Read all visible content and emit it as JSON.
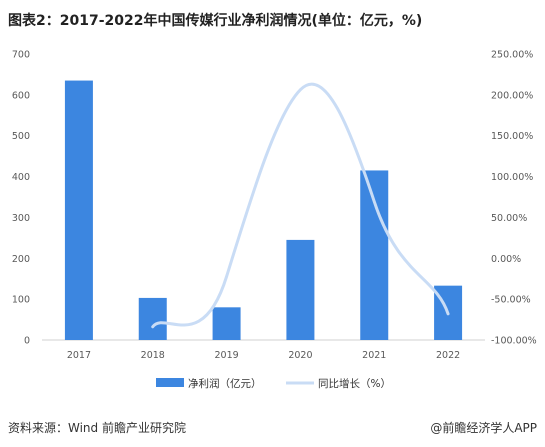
{
  "header": {
    "title": "图表2：2017-2022年中国传媒行业净利润情况(单位：亿元，%)"
  },
  "footer": {
    "source": "资料来源：Wind 前瞻产业研究院",
    "brand": "@前瞻经济学人APP"
  },
  "colors": {
    "bar": "#3c86e0",
    "line": "#c9dcf5",
    "axis": "#d0d0d0",
    "text": "#595959"
  },
  "chart_data": {
    "type": "bar",
    "categories": [
      "2017",
      "2018",
      "2019",
      "2020",
      "2021",
      "2022"
    ],
    "series": [
      {
        "name": "净利润（亿元）",
        "type": "bar",
        "axis": "left",
        "values": [
          635,
          103,
          80,
          245,
          415,
          133
        ]
      },
      {
        "name": "同比增长（%）",
        "type": "line",
        "axis": "right",
        "smooth": true,
        "values": [
          null,
          -83.8,
          -22.3,
          206.3,
          69.4,
          -68.0
        ]
      }
    ],
    "ylim_left": [
      0,
      700
    ],
    "yticks_left": [
      "0",
      "100",
      "200",
      "300",
      "400",
      "500",
      "600",
      "700"
    ],
    "ylim_right": [
      -100,
      250
    ],
    "yticks_right": [
      "-100.00%",
      "-50.00%",
      "0.00%",
      "50.00%",
      "100.00%",
      "150.00%",
      "200.00%",
      "250.00%"
    ],
    "xlabel": "",
    "ylabel": "",
    "grid": false,
    "legend_position": "bottom"
  }
}
